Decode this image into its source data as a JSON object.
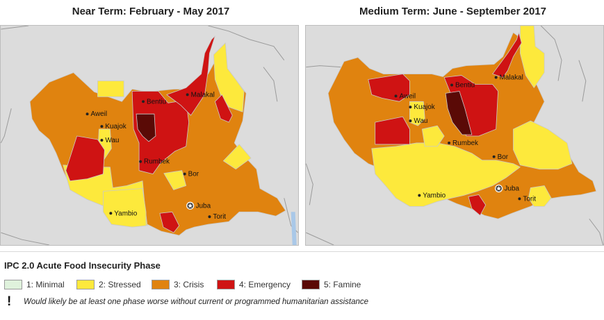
{
  "maps": {
    "left_title": "Near Term: February - May 2017",
    "right_title": "Medium Term: June - September 2017"
  },
  "cities": {
    "aweil": "Aweil",
    "kuajok": "Kuajok",
    "wau": "Wau",
    "bentiu": "Bentiu",
    "malakal": "Malakal",
    "rumbek": "Rumbek",
    "bor": "Bor",
    "juba": "Juba",
    "yambio": "Yambio",
    "torit": "Torit"
  },
  "legend": {
    "title": "IPC 2.0 Acute Food Insecurity Phase",
    "phases": [
      {
        "label": "1: Minimal",
        "color": "#dff2dc"
      },
      {
        "label": "2: Stressed",
        "color": "#fde93c"
      },
      {
        "label": "3: Crisis",
        "color": "#e0830f"
      },
      {
        "label": "4: Emergency",
        "color": "#cf1313"
      },
      {
        "label": "5: Famine",
        "color": "#5a0a06"
      }
    ],
    "assistance_symbol": "!",
    "assistance_note": "Would likely be at least one phase worse without current or programmed humanitarian assistance"
  }
}
